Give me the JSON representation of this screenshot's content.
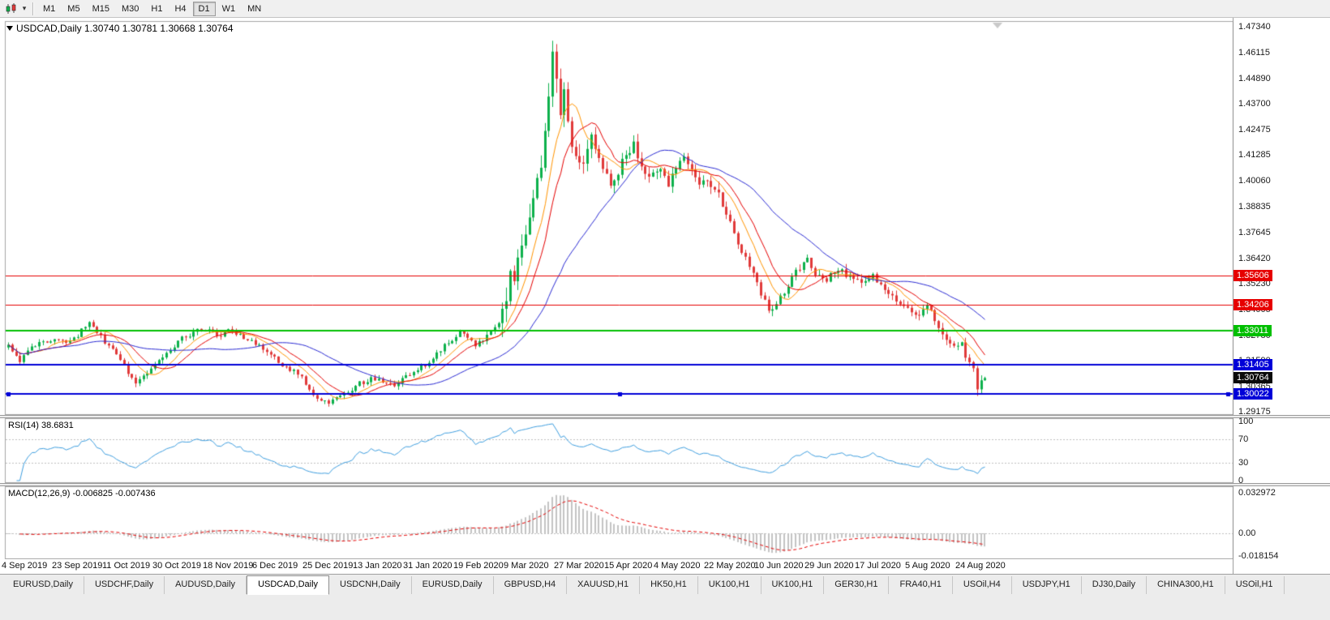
{
  "colors": {
    "up": "#0db14b",
    "down": "#e13a3a",
    "rsi_line": "#3f9fe0",
    "rsi_guide": "#c0c0c0",
    "macd_hist": "#c4c4c4",
    "macd_signal": "#e60000",
    "price_tag_current_bg": "#0a0a0a",
    "frame": "#a6a6a6"
  },
  "icons": {
    "chart_type": "candlestick-chart-icon",
    "dropdown": "chevron-down-icon",
    "one_click": "one-click-trading-icon"
  },
  "toolbar": {
    "timeframes": [
      {
        "label": "M1"
      },
      {
        "label": "M5"
      },
      {
        "label": "M15"
      },
      {
        "label": "M30"
      },
      {
        "label": "H1"
      },
      {
        "label": "H4"
      },
      {
        "label": "D1",
        "active": true
      },
      {
        "label": "W1"
      },
      {
        "label": "MN"
      }
    ]
  },
  "chart": {
    "title": "USDCAD,Daily 1.30740 1.30781 1.30668 1.30764"
  },
  "rsi": {
    "label": "RSI(14) 38.6831",
    "period": 14,
    "value": 38.6831,
    "levels": [
      {
        "label": "100",
        "value": 100
      },
      {
        "label": "70",
        "value": 70
      },
      {
        "label": "30",
        "value": 30
      },
      {
        "label": "0",
        "value": 0
      }
    ],
    "guides": [
      70,
      30
    ]
  },
  "macd": {
    "label": "MACD(12,26,9) -0.006825 -0.007436",
    "params": [
      12,
      26,
      9
    ],
    "values": [
      -0.006825,
      -0.007436
    ],
    "axis": [
      {
        "label": "0.032972",
        "value": 0.032972
      },
      {
        "label": "0.00",
        "value": 0
      },
      {
        "label": "-0.018154",
        "value": -0.018154
      }
    ]
  },
  "chart_data": {
    "type": "candlestick",
    "symbol": "USDCAD",
    "timeframe": "Daily",
    "ohlc_display": {
      "open": "1.30740",
      "high": "1.30781",
      "low": "1.30668",
      "close": "1.30764"
    },
    "last_close": 1.30764,
    "candle_count": 254,
    "y_axis_ticks": [
      "1.47340",
      "1.46115",
      "1.44890",
      "1.43700",
      "1.42475",
      "1.41285",
      "1.40060",
      "1.38835",
      "1.37645",
      "1.36420",
      "1.35230",
      "1.34005",
      "1.32780",
      "1.31590",
      "1.30365",
      "1.29175"
    ],
    "x_axis_labels": [
      {
        "index": 0,
        "label": "4 Sep 2019"
      },
      {
        "index": 13,
        "label": "23 Sep 2019"
      },
      {
        "index": 26,
        "label": "11 Oct 2019"
      },
      {
        "index": 39,
        "label": "30 Oct 2019"
      },
      {
        "index": 52,
        "label": "18 Nov 2019"
      },
      {
        "index": 65,
        "label": "6 Dec 2019"
      },
      {
        "index": 78,
        "label": "25 Dec 2019"
      },
      {
        "index": 91,
        "label": "13 Jan 2020"
      },
      {
        "index": 104,
        "label": "31 Jan 2020"
      },
      {
        "index": 117,
        "label": "19 Feb 2020"
      },
      {
        "index": 130,
        "label": "9 Mar 2020"
      },
      {
        "index": 143,
        "label": "27 Mar 2020"
      },
      {
        "index": 156,
        "label": "15 Apr 2020"
      },
      {
        "index": 169,
        "label": "4 May 2020"
      },
      {
        "index": 182,
        "label": "22 May 2020"
      },
      {
        "index": 195,
        "label": "10 Jun 2020"
      },
      {
        "index": 208,
        "label": "29 Jun 2020"
      },
      {
        "index": 221,
        "label": "17 Jul 2020"
      },
      {
        "index": 234,
        "label": "5 Aug 2020"
      },
      {
        "index": 247,
        "label": "24 Aug 2020"
      }
    ],
    "horizontal_lines": [
      {
        "label": "1.35606",
        "price": 1.35606,
        "color": "#e60000",
        "width": 1
      },
      {
        "label": "1.34206",
        "price": 1.34206,
        "color": "#e60000",
        "width": 1
      },
      {
        "label": "1.33011",
        "price": 1.33011,
        "color": "#00bf00",
        "width": 2
      },
      {
        "label": "1.31405",
        "price": 1.31405,
        "color": "#0000d8",
        "width": 2
      },
      {
        "label": "1.30022",
        "price": 1.30022,
        "color": "#0000d8",
        "width": 2,
        "selected": true
      }
    ],
    "current_price_tag": {
      "label": "1.30764",
      "price": 1.30764
    },
    "moving_averages": [
      {
        "name": "fast",
        "period": 8,
        "color": "#ff9400"
      },
      {
        "name": "mid",
        "period": 13,
        "color": "#e60000"
      },
      {
        "name": "slow",
        "period": 34,
        "color": "#2b2bd4"
      }
    ],
    "price_path_anchors": [
      [
        0,
        1.3225
      ],
      [
        3,
        1.316
      ],
      [
        5,
        1.3215
      ],
      [
        8,
        1.324
      ],
      [
        11,
        1.3252
      ],
      [
        13,
        1.3258
      ],
      [
        15,
        1.3235
      ],
      [
        17,
        1.3262
      ],
      [
        19,
        1.33
      ],
      [
        21,
        1.3335
      ],
      [
        23,
        1.329
      ],
      [
        26,
        1.323
      ],
      [
        29,
        1.316
      ],
      [
        31,
        1.31
      ],
      [
        33,
        1.3062
      ],
      [
        35,
        1.3085
      ],
      [
        37,
        1.3125
      ],
      [
        39,
        1.3165
      ],
      [
        42,
        1.3215
      ],
      [
        45,
        1.3262
      ],
      [
        48,
        1.3292
      ],
      [
        50,
        1.3305
      ],
      [
        52,
        1.331
      ],
      [
        54,
        1.327
      ],
      [
        57,
        1.33
      ],
      [
        60,
        1.3278
      ],
      [
        63,
        1.3248
      ],
      [
        65,
        1.3228
      ],
      [
        68,
        1.3185
      ],
      [
        71,
        1.314
      ],
      [
        74,
        1.3105
      ],
      [
        76,
        1.308
      ],
      [
        78,
        1.302
      ],
      [
        80,
        1.2985
      ],
      [
        83,
        1.2958
      ],
      [
        86,
        1.2992
      ],
      [
        89,
        1.302
      ],
      [
        91,
        1.305
      ],
      [
        94,
        1.3075
      ],
      [
        97,
        1.306
      ],
      [
        100,
        1.3042
      ],
      [
        102,
        1.307
      ],
      [
        104,
        1.31
      ],
      [
        107,
        1.3125
      ],
      [
        110,
        1.317
      ],
      [
        113,
        1.323
      ],
      [
        115,
        1.3262
      ],
      [
        117,
        1.3288
      ],
      [
        119,
        1.3268
      ],
      [
        121,
        1.3235
      ],
      [
        123,
        1.3258
      ],
      [
        125,
        1.3295
      ],
      [
        126,
        1.332
      ],
      [
        128,
        1.3365
      ],
      [
        129,
        1.342
      ],
      [
        130,
        1.3555
      ],
      [
        131,
        1.35
      ],
      [
        132,
        1.363
      ],
      [
        134,
        1.3715
      ],
      [
        136,
        1.389
      ],
      [
        138,
        1.408
      ],
      [
        139,
        1.423
      ],
      [
        140,
        1.443
      ],
      [
        141,
        1.4595
      ],
      [
        142,
        1.449
      ],
      [
        143,
        1.434
      ],
      [
        144,
        1.4435
      ],
      [
        145,
        1.429
      ],
      [
        146,
        1.415
      ],
      [
        148,
        1.406
      ],
      [
        150,
        1.4195
      ],
      [
        152,
        1.4175
      ],
      [
        154,
        1.4065
      ],
      [
        156,
        1.3975
      ],
      [
        158,
        1.405
      ],
      [
        160,
        1.413
      ],
      [
        162,
        1.417
      ],
      [
        164,
        1.4075
      ],
      [
        166,
        1.4005
      ],
      [
        168,
        1.407
      ],
      [
        169,
        1.405
      ],
      [
        171,
        1.3985
      ],
      [
        173,
        1.406
      ],
      [
        175,
        1.412
      ],
      [
        177,
        1.407
      ],
      [
        179,
        1.4005
      ],
      [
        182,
        1.399
      ],
      [
        184,
        1.393
      ],
      [
        186,
        1.385
      ],
      [
        188,
        1.376
      ],
      [
        190,
        1.368
      ],
      [
        192,
        1.36
      ],
      [
        194,
        1.352
      ],
      [
        197,
        1.339
      ],
      [
        199,
        1.342
      ],
      [
        202,
        1.352
      ],
      [
        205,
        1.36
      ],
      [
        207,
        1.364
      ],
      [
        209,
        1.357
      ],
      [
        212,
        1.3545
      ],
      [
        215,
        1.359
      ],
      [
        218,
        1.3555
      ],
      [
        221,
        1.353
      ],
      [
        224,
        1.356
      ],
      [
        227,
        1.35
      ],
      [
        230,
        1.345
      ],
      [
        233,
        1.34
      ],
      [
        236,
        1.3375
      ],
      [
        238,
        1.342
      ],
      [
        240,
        1.335
      ],
      [
        242,
        1.329
      ],
      [
        244,
        1.325
      ],
      [
        246,
        1.3215
      ],
      [
        247,
        1.3255
      ],
      [
        248,
        1.3185
      ],
      [
        250,
        1.311
      ],
      [
        251,
        1.303
      ],
      [
        252,
        1.306
      ],
      [
        253,
        1.30764
      ]
    ],
    "volatility": [
      {
        "to": 127,
        "body": 0.0016,
        "wick": 0.0018
      },
      {
        "to": 152,
        "body": 0.006,
        "wick": 0.0068
      },
      {
        "to": 184,
        "body": 0.0032,
        "wick": 0.0038
      },
      {
        "to": 253,
        "body": 0.002,
        "wick": 0.0026
      }
    ],
    "wick_overrides": [
      {
        "index": 141,
        "high": 1.4668
      },
      {
        "index": 251,
        "low": 1.2992
      }
    ]
  },
  "bottom_tabs": [
    {
      "label": "EURUSD,Daily"
    },
    {
      "label": "USDCHF,Daily"
    },
    {
      "label": "AUDUSD,Daily"
    },
    {
      "label": "USDCAD,Daily",
      "active": true
    },
    {
      "label": "USDCNH,Daily"
    },
    {
      "label": "EURUSD,Daily"
    },
    {
      "label": "GBPUSD,H4"
    },
    {
      "label": "XAUUSD,H1"
    },
    {
      "label": "HK50,H1"
    },
    {
      "label": "UK100,H1"
    },
    {
      "label": "UK100,H1"
    },
    {
      "label": "GER30,H1"
    },
    {
      "label": "FRA40,H1"
    },
    {
      "label": "USOil,H4"
    },
    {
      "label": "USDJPY,H1"
    },
    {
      "label": "DJ30,Daily"
    },
    {
      "label": "CHINA300,H1"
    },
    {
      "label": "USOil,H1"
    }
  ]
}
